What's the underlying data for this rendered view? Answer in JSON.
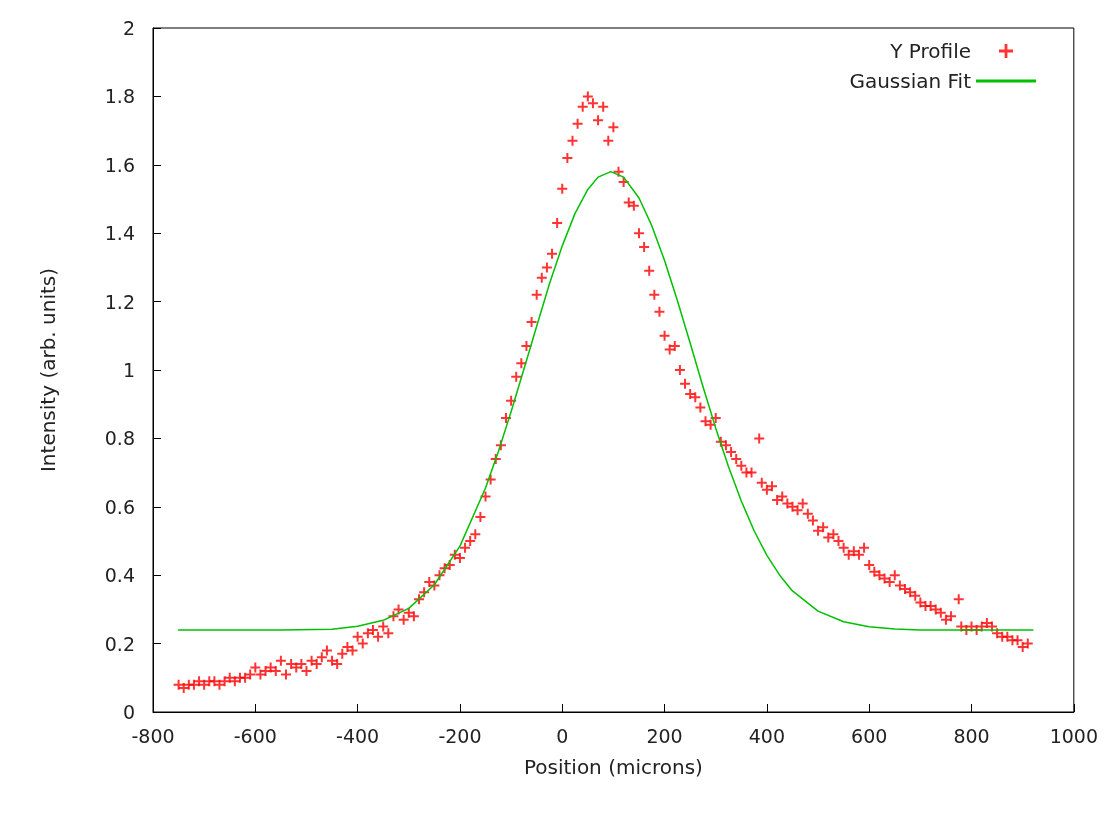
{
  "chart_data": {
    "type": "scatter",
    "xlabel": "Position (microns)",
    "ylabel": "Intensity (arb. units)",
    "xlim": [
      -800,
      1000
    ],
    "xticks": [
      -800,
      -600,
      -400,
      -200,
      0,
      200,
      400,
      600,
      800,
      1000
    ],
    "ylim": [
      0,
      2
    ],
    "yticks": [
      0,
      0.2,
      0.4,
      0.6,
      0.8,
      1,
      1.2,
      1.4,
      1.6,
      1.8,
      2
    ],
    "grid": false,
    "legend": "top right",
    "series": [
      {
        "name": "Y Profile",
        "color": "#ff0000",
        "marker": "cross",
        "x": [
          -750,
          -740,
          -730,
          -720,
          -710,
          -700,
          -690,
          -680,
          -670,
          -660,
          -650,
          -640,
          -630,
          -620,
          -610,
          -600,
          -590,
          -580,
          -570,
          -560,
          -550,
          -540,
          -530,
          -520,
          -510,
          -500,
          -490,
          -480,
          -470,
          -460,
          -450,
          -440,
          -430,
          -420,
          -410,
          -400,
          -390,
          -380,
          -370,
          -360,
          -350,
          -340,
          -330,
          -320,
          -310,
          -300,
          -290,
          -280,
          -270,
          -260,
          -250,
          -240,
          -230,
          -220,
          -210,
          -200,
          -190,
          -180,
          -170,
          -160,
          -150,
          -140,
          -130,
          -120,
          -110,
          -100,
          -90,
          -80,
          -70,
          -60,
          -50,
          -40,
          -30,
          -20,
          -10,
          0,
          10,
          20,
          30,
          40,
          50,
          60,
          70,
          80,
          90,
          100,
          110,
          120,
          130,
          140,
          150,
          160,
          170,
          180,
          190,
          200,
          210,
          220,
          230,
          240,
          250,
          260,
          270,
          280,
          290,
          300,
          310,
          320,
          330,
          340,
          350,
          360,
          370,
          385,
          390,
          400,
          410,
          420,
          430,
          440,
          450,
          460,
          470,
          480,
          490,
          500,
          510,
          520,
          530,
          540,
          550,
          560,
          570,
          580,
          590,
          600,
          610,
          620,
          630,
          640,
          650,
          660,
          670,
          680,
          690,
          700,
          710,
          720,
          730,
          740,
          750,
          760,
          775,
          780,
          790,
          800,
          810,
          820,
          830,
          840,
          850,
          860,
          870,
          880,
          890,
          900,
          910
        ],
        "values": [
          0.08,
          0.07,
          0.08,
          0.08,
          0.09,
          0.08,
          0.09,
          0.09,
          0.08,
          0.09,
          0.1,
          0.09,
          0.1,
          0.1,
          0.11,
          0.13,
          0.11,
          0.12,
          0.13,
          0.12,
          0.15,
          0.11,
          0.14,
          0.13,
          0.14,
          0.12,
          0.15,
          0.14,
          0.16,
          0.18,
          0.15,
          0.14,
          0.17,
          0.19,
          0.18,
          0.22,
          0.2,
          0.23,
          0.24,
          0.22,
          0.25,
          0.23,
          0.28,
          0.3,
          0.27,
          0.29,
          0.28,
          0.33,
          0.35,
          0.38,
          0.37,
          0.4,
          0.42,
          0.43,
          0.46,
          0.45,
          0.48,
          0.5,
          0.52,
          0.57,
          0.63,
          0.68,
          0.74,
          0.78,
          0.86,
          0.91,
          0.98,
          1.02,
          1.07,
          1.14,
          1.22,
          1.27,
          1.3,
          1.34,
          1.43,
          1.53,
          1.62,
          1.67,
          1.72,
          1.77,
          1.8,
          1.78,
          1.73,
          1.77,
          1.67,
          1.71,
          1.58,
          1.55,
          1.49,
          1.48,
          1.4,
          1.36,
          1.29,
          1.22,
          1.17,
          1.1,
          1.06,
          1.07,
          1,
          0.96,
          0.93,
          0.92,
          0.89,
          0.85,
          0.84,
          0.86,
          0.79,
          0.78,
          0.76,
          0.74,
          0.72,
          0.7,
          0.7,
          0.8,
          0.67,
          0.65,
          0.66,
          0.62,
          0.63,
          0.61,
          0.6,
          0.59,
          0.61,
          0.58,
          0.56,
          0.53,
          0.54,
          0.51,
          0.52,
          0.5,
          0.48,
          0.46,
          0.47,
          0.46,
          0.48,
          0.43,
          0.41,
          0.4,
          0.39,
          0.38,
          0.4,
          0.37,
          0.36,
          0.35,
          0.34,
          0.32,
          0.31,
          0.31,
          0.3,
          0.29,
          0.27,
          0.28,
          0.33,
          0.25,
          0.24,
          0.25,
          0.24,
          0.25,
          0.26,
          0.25,
          0.23,
          0.22,
          0.22,
          0.21,
          0.21,
          0.19,
          0.2
        ]
      },
      {
        "name": "Gaussian Fit",
        "type": "line",
        "color": "#00c000",
        "marker": "none",
        "line_style": "solid",
        "x": [
          -750,
          -650,
          -550,
          -450,
          -400,
          -350,
          -300,
          -250,
          -200,
          -150,
          -125,
          -100,
          -75,
          -50,
          -25,
          0,
          25,
          50,
          70,
          95,
          120,
          150,
          175,
          200,
          225,
          250,
          275,
          300,
          325,
          350,
          375,
          400,
          425,
          450,
          500,
          550,
          600,
          650,
          700,
          800,
          920
        ],
        "values": [
          0.24,
          0.24,
          0.24,
          0.242,
          0.251,
          0.268,
          0.303,
          0.372,
          0.485,
          0.655,
          0.761,
          0.878,
          1.002,
          1.128,
          1.252,
          1.363,
          1.458,
          1.528,
          1.564,
          1.58,
          1.564,
          1.503,
          1.422,
          1.32,
          1.203,
          1.079,
          0.952,
          0.83,
          0.717,
          0.617,
          0.53,
          0.458,
          0.4,
          0.354,
          0.295,
          0.264,
          0.249,
          0.243,
          0.24,
          0.24,
          0.24
        ]
      }
    ]
  }
}
